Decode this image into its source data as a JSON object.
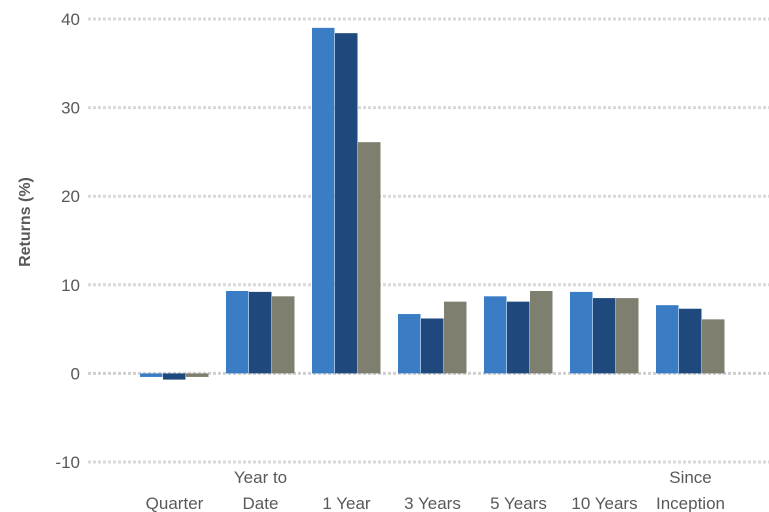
{
  "chart_data": {
    "type": "bar",
    "title": "",
    "xlabel": "",
    "ylabel": "Returns (%)",
    "ylim": [
      -10,
      40
    ],
    "yticks": [
      -10,
      0,
      10,
      20,
      30,
      40
    ],
    "grid": true,
    "legend": "none",
    "categories": [
      [
        "Quarter"
      ],
      [
        "Year to",
        "Date"
      ],
      [
        "1 Year"
      ],
      [
        "3 Years"
      ],
      [
        "5 Years"
      ],
      [
        "10 Years"
      ],
      [
        "Since",
        "Inception"
      ]
    ],
    "series": [
      {
        "color": "#3a7dc4",
        "values": [
          -0.4,
          9.3,
          39.0,
          6.7,
          8.7,
          9.2,
          7.7
        ]
      },
      {
        "color": "#1f497d",
        "values": [
          -0.7,
          9.2,
          38.4,
          6.2,
          8.1,
          8.5,
          7.3
        ]
      },
      {
        "color": "#7f7f6f",
        "values": [
          -0.4,
          8.7,
          26.1,
          8.1,
          9.3,
          8.5,
          6.1
        ]
      }
    ]
  }
}
